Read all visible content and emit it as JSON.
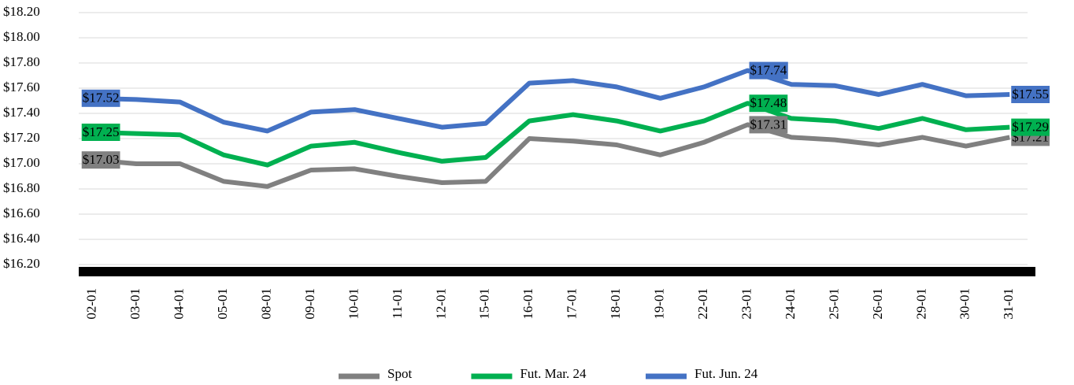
{
  "chart_data": {
    "type": "line",
    "categories": [
      "02-01",
      "03-01",
      "04-01",
      "05-01",
      "08-01",
      "09-01",
      "10-01",
      "11-01",
      "12-01",
      "15-01",
      "16-01",
      "17-01",
      "18-01",
      "19-01",
      "22-01",
      "23-01",
      "24-01",
      "25-01",
      "26-01",
      "29-01",
      "30-01",
      "31-01"
    ],
    "series": [
      {
        "name": "Spot",
        "color": "#808080",
        "values": [
          17.03,
          17.0,
          17.0,
          16.86,
          16.82,
          16.95,
          16.96,
          16.9,
          16.85,
          16.86,
          17.2,
          17.18,
          17.15,
          17.07,
          17.17,
          17.31,
          17.21,
          17.19,
          17.15,
          17.21,
          17.14,
          17.21
        ],
        "value_labels": [
          "$17.03",
          null,
          null,
          null,
          null,
          null,
          null,
          null,
          null,
          null,
          null,
          null,
          null,
          null,
          null,
          "$17.31",
          null,
          null,
          null,
          null,
          null,
          "$17.21"
        ]
      },
      {
        "name": "Fut. Mar. 24",
        "color": "#00b050",
        "values": [
          17.25,
          17.24,
          17.23,
          17.07,
          16.99,
          17.14,
          17.17,
          17.09,
          17.02,
          17.05,
          17.34,
          17.39,
          17.34,
          17.26,
          17.34,
          17.48,
          17.36,
          17.34,
          17.28,
          17.36,
          17.27,
          17.29
        ],
        "value_labels": [
          "$17.25",
          null,
          null,
          null,
          null,
          null,
          null,
          null,
          null,
          null,
          null,
          null,
          null,
          null,
          null,
          "$17.48",
          null,
          null,
          null,
          null,
          null,
          "$17.29"
        ]
      },
      {
        "name": "Fut. Jun. 24",
        "color": "#4472c4",
        "values": [
          17.52,
          17.51,
          17.49,
          17.33,
          17.26,
          17.41,
          17.43,
          17.36,
          17.29,
          17.32,
          17.64,
          17.66,
          17.61,
          17.52,
          17.61,
          17.74,
          17.63,
          17.62,
          17.55,
          17.63,
          17.54,
          17.55
        ],
        "value_labels": [
          "$17.52",
          null,
          null,
          null,
          null,
          null,
          null,
          null,
          null,
          null,
          null,
          null,
          null,
          null,
          null,
          "$17.74",
          null,
          null,
          null,
          null,
          null,
          "$17.55"
        ]
      }
    ],
    "ylim": [
      16.2,
      18.2
    ],
    "yticks": [
      {
        "value": 16.2,
        "label": "$16.20"
      },
      {
        "value": 16.4,
        "label": "$16.40"
      },
      {
        "value": 16.6,
        "label": "$16.60"
      },
      {
        "value": 16.8,
        "label": "$16.80"
      },
      {
        "value": 17.0,
        "label": "$17.00"
      },
      {
        "value": 17.2,
        "label": "$17.20"
      },
      {
        "value": 17.4,
        "label": "$17.40"
      },
      {
        "value": 17.6,
        "label": "$17.60"
      },
      {
        "value": 17.8,
        "label": "$17.80"
      },
      {
        "value": 18.0,
        "label": "$18.00"
      },
      {
        "value": 18.2,
        "label": "$18.20"
      }
    ],
    "grid": true,
    "legend": "bottom"
  }
}
